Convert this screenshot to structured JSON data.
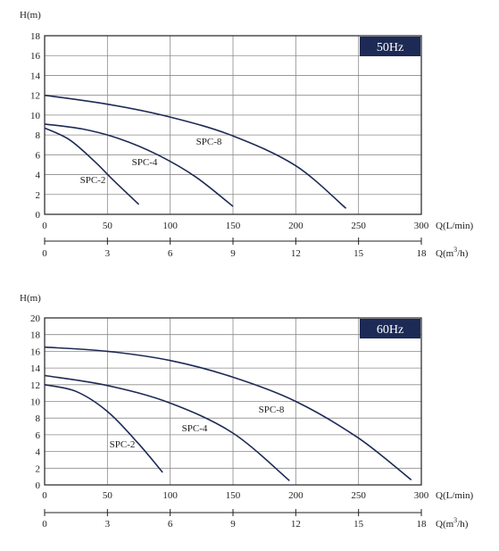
{
  "chart_data": [
    {
      "type": "line",
      "frequency_badge": "50Hz",
      "ylabel": "H(m)",
      "xlabel": "Q(L/min)",
      "x2label_prefix": "Q(m",
      "x2label_sup": "3",
      "x2label_suffix": "/h)",
      "xlim": [
        0,
        300
      ],
      "ylim": [
        0,
        18
      ],
      "x_ticks": [
        "0",
        "50",
        "100",
        "150",
        "200",
        "250",
        "300"
      ],
      "y_ticks": [
        "0",
        "2",
        "4",
        "6",
        "8",
        "10",
        "12",
        "14",
        "16",
        "18"
      ],
      "x2_ticks": [
        "0",
        "3",
        "6",
        "9",
        "12",
        "15",
        "18"
      ],
      "grid": true,
      "series": [
        {
          "name": "SPC-2",
          "x": [
            0,
            20,
            40,
            55,
            75
          ],
          "y": [
            8.7,
            7.5,
            5.3,
            3.4,
            1.0
          ]
        },
        {
          "name": "SPC-4",
          "x": [
            0,
            30,
            60,
            90,
            120,
            150
          ],
          "y": [
            9.1,
            8.6,
            7.6,
            6.0,
            3.8,
            0.8
          ]
        },
        {
          "name": "SPC-8",
          "x": [
            0,
            50,
            100,
            150,
            200,
            240
          ],
          "y": [
            12.0,
            11.1,
            9.8,
            7.9,
            4.9,
            0.6
          ]
        }
      ]
    },
    {
      "type": "line",
      "frequency_badge": "60Hz",
      "ylabel": "H(m)",
      "xlabel": "Q(L/min)",
      "x2label_prefix": "Q(m",
      "x2label_sup": "3",
      "x2label_suffix": "/h)",
      "xlim": [
        0,
        300
      ],
      "ylim": [
        0,
        20
      ],
      "x_ticks": [
        "0",
        "50",
        "100",
        "150",
        "200",
        "250",
        "300"
      ],
      "y_ticks": [
        "0",
        "2",
        "4",
        "6",
        "8",
        "10",
        "12",
        "14",
        "16",
        "18",
        "20"
      ],
      "x2_ticks": [
        "0",
        "3",
        "6",
        "9",
        "12",
        "15",
        "18"
      ],
      "grid": true,
      "series": [
        {
          "name": "SPC-2",
          "x": [
            0,
            25,
            50,
            75,
            94
          ],
          "y": [
            12.0,
            11.2,
            8.8,
            4.9,
            1.5
          ]
        },
        {
          "name": "SPC-4",
          "x": [
            0,
            50,
            100,
            150,
            195
          ],
          "y": [
            13.1,
            11.9,
            9.8,
            6.2,
            0.5
          ]
        },
        {
          "name": "SPC-8",
          "x": [
            0,
            50,
            100,
            150,
            200,
            250,
            292
          ],
          "y": [
            16.5,
            16.0,
            14.9,
            12.9,
            10.0,
            5.6,
            0.6
          ]
        }
      ]
    }
  ],
  "colors": {
    "curve": "#1d2a55",
    "badge_bg": "#1d2a55",
    "badge_text": "#ffffff",
    "grid": "#8a8a8a",
    "frame": "#222222"
  }
}
